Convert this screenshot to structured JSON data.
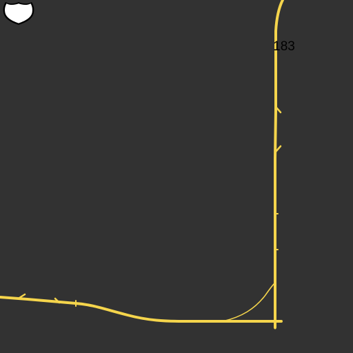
{
  "map": {
    "background_color": "#323232",
    "road_color": "#f5d54c",
    "shield": {
      "route_number": "183",
      "icon": "us-highway-shield-icon",
      "fill_color": "#ffffff",
      "outline_color": "#000000"
    }
  }
}
